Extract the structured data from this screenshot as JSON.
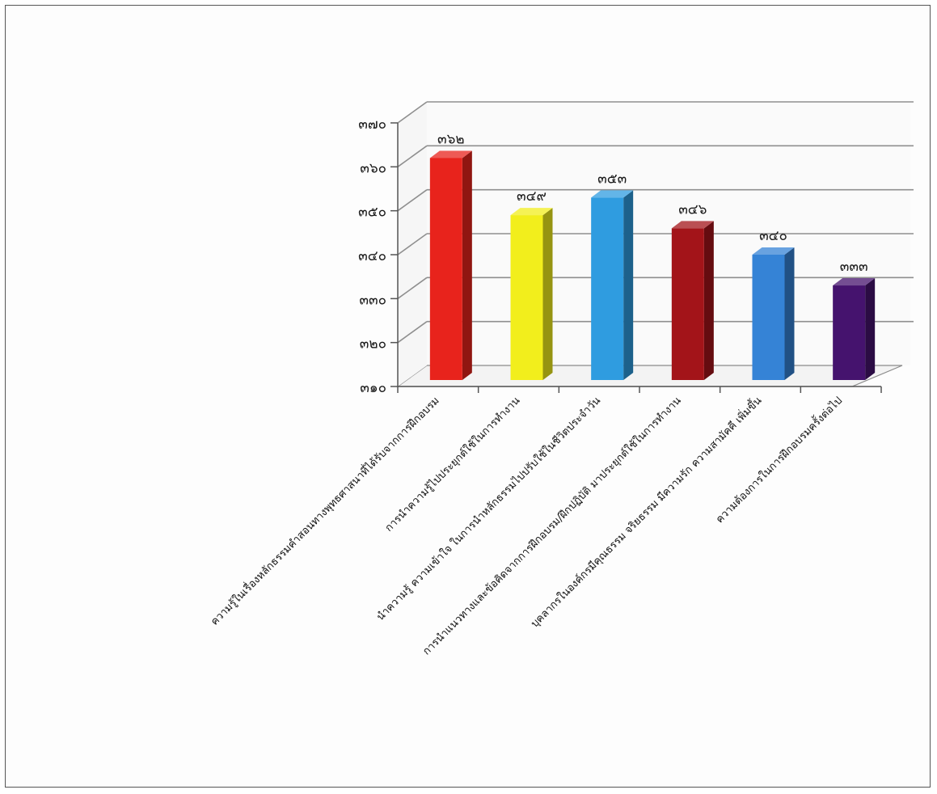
{
  "chart_data": {
    "type": "bar",
    "style": "3d-column",
    "categories": [
      "ความรู้ในเรื่องหลักธรรมคำสอนทางพุทธศาสนาที่ได้รับจากการฝึกอบรม",
      "การนำความรู้ไปประยุกต์ใช้ในการทำงาน",
      "นำความรู้ ความเข้าใจ ในการนำหลักธรรมไปปรับใช้ในชีวิตประจำวัน",
      "การนำแนวทางและข้อคิดจากการฝึกอบรม/ฝึกปฏิบัติ มาประยุกต์ใช้ในการทำงาน",
      "บุคลากรในองค์กรมีคุณธรรม จริยธรรม มีความรัก ความสามัคคี เพิ่มขึ้น",
      "ความต้องการในการฝึกอบรมครั้งต่อไป"
    ],
    "values": [
      362,
      349,
      353,
      346,
      340,
      333
    ],
    "value_labels": [
      "๓๖๒",
      "๓๔๙",
      "๓๕๓",
      "๓๔๖",
      "๓๔๐",
      "๓๓๓"
    ],
    "bar_colors": [
      "#e8231c",
      "#f2ee1c",
      "#2f9ce0",
      "#a31419",
      "#3583d6",
      "#45136e"
    ],
    "y_ticks": [
      310,
      320,
      330,
      340,
      350,
      360,
      370
    ],
    "y_tick_labels": [
      "๓๑๐",
      "๓๒๐",
      "๓๓๐",
      "๓๔๐",
      "๓๕๐",
      "๓๖๐",
      "๓๗๐"
    ],
    "ylim": [
      310,
      370
    ],
    "grid": true,
    "legend": "none",
    "title": "",
    "xlabel": "",
    "ylabel": ""
  }
}
